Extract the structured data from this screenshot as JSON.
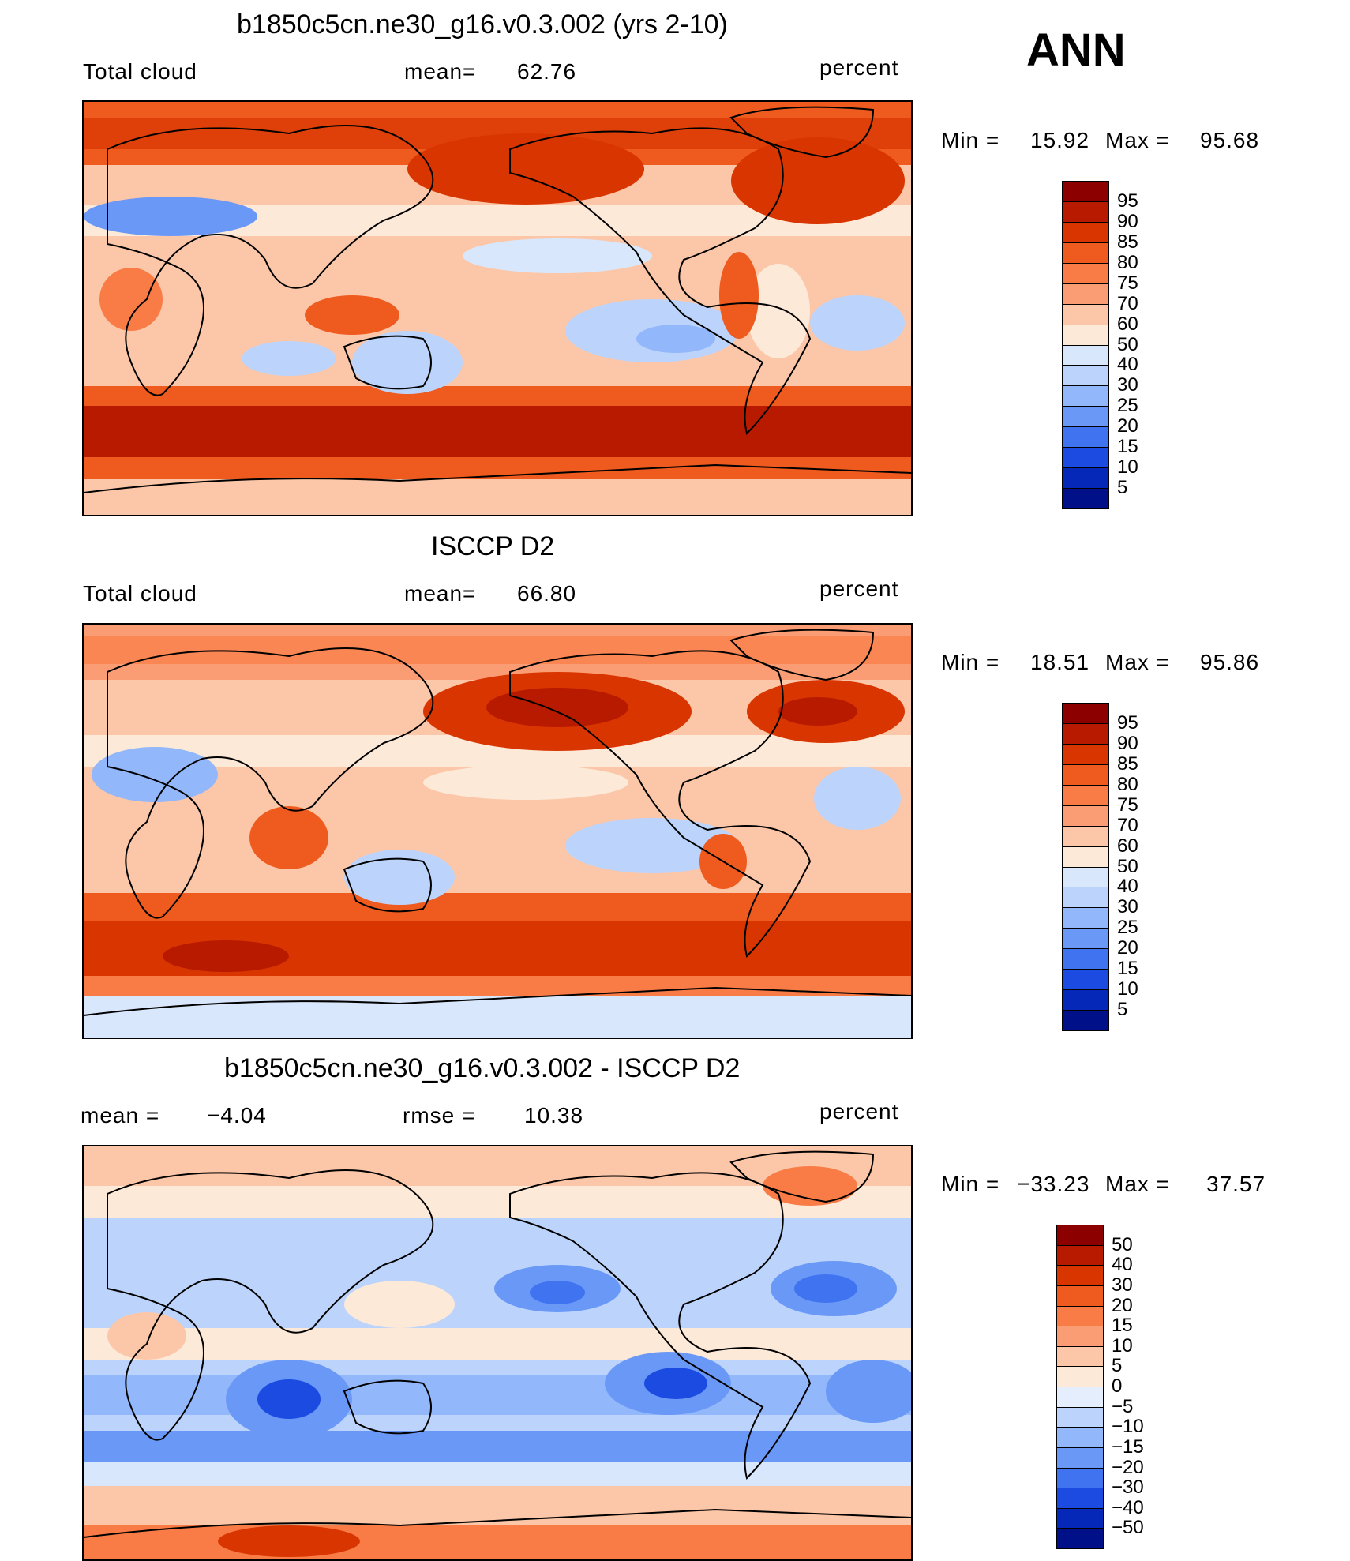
{
  "season": "ANN",
  "panels": [
    {
      "id": "model",
      "title": "b1850c5cn.ne30_g16.v0.3.002 (yrs 2-10)",
      "left_label": "Total cloud",
      "mid_label": "mean=",
      "mid_value": "62.76",
      "units": "percent",
      "min_label": "Min =",
      "min_value": "15.92",
      "max_label": "Max =",
      "max_value": "95.68",
      "colorbar": {
        "ticks": [
          "95",
          "90",
          "85",
          "80",
          "75",
          "70",
          "60",
          "50",
          "40",
          "30",
          "25",
          "20",
          "15",
          "10",
          "5"
        ],
        "colors": [
          "#8c0000",
          "#b81a00",
          "#d93500",
          "#ef5a1e",
          "#f97c47",
          "#fb9d74",
          "#fcc7a8",
          "#fde9d8",
          "#d8e7fb",
          "#bcd4fb",
          "#92b7fa",
          "#6a98f7",
          "#3f73ef",
          "#1b4be0",
          "#0628b8",
          "#001088"
        ]
      }
    },
    {
      "id": "obs",
      "title": "ISCCP D2",
      "left_label": "Total cloud",
      "mid_label": "mean=",
      "mid_value": "66.80",
      "units": "percent",
      "min_label": "Min =",
      "min_value": "18.51",
      "max_label": "Max =",
      "max_value": "95.86",
      "colorbar": {
        "ticks": [
          "95",
          "90",
          "85",
          "80",
          "75",
          "70",
          "60",
          "50",
          "40",
          "30",
          "25",
          "20",
          "15",
          "10",
          "5"
        ],
        "colors": [
          "#8c0000",
          "#b81a00",
          "#d93500",
          "#ef5a1e",
          "#f97c47",
          "#fb9d74",
          "#fcc7a8",
          "#fde9d8",
          "#d8e7fb",
          "#bcd4fb",
          "#92b7fa",
          "#6a98f7",
          "#3f73ef",
          "#1b4be0",
          "#0628b8",
          "#001088"
        ]
      }
    },
    {
      "id": "diff",
      "title": "b1850c5cn.ne30_g16.v0.3.002 - ISCCP D2",
      "left_label": "mean =",
      "left_value": "−4.04",
      "mid_label": "rmse =",
      "mid_value": "10.38",
      "units": "percent",
      "min_label": "Min =",
      "min_value": "−33.23",
      "max_label": "Max =",
      "max_value": "37.57",
      "colorbar": {
        "ticks": [
          "50",
          "40",
          "30",
          "20",
          "15",
          "10",
          "5",
          "0",
          "−5",
          "−10",
          "−15",
          "−20",
          "−30",
          "−40",
          "−50"
        ],
        "colors": [
          "#8c0000",
          "#b81a00",
          "#d93500",
          "#ef5a1e",
          "#f97c47",
          "#fb9d74",
          "#fcc7a8",
          "#fde9d8",
          "#e4eefc",
          "#bcd4fb",
          "#92b7fa",
          "#6a98f7",
          "#3f73ef",
          "#1b4be0",
          "#0628b8",
          "#001088"
        ]
      }
    }
  ]
}
